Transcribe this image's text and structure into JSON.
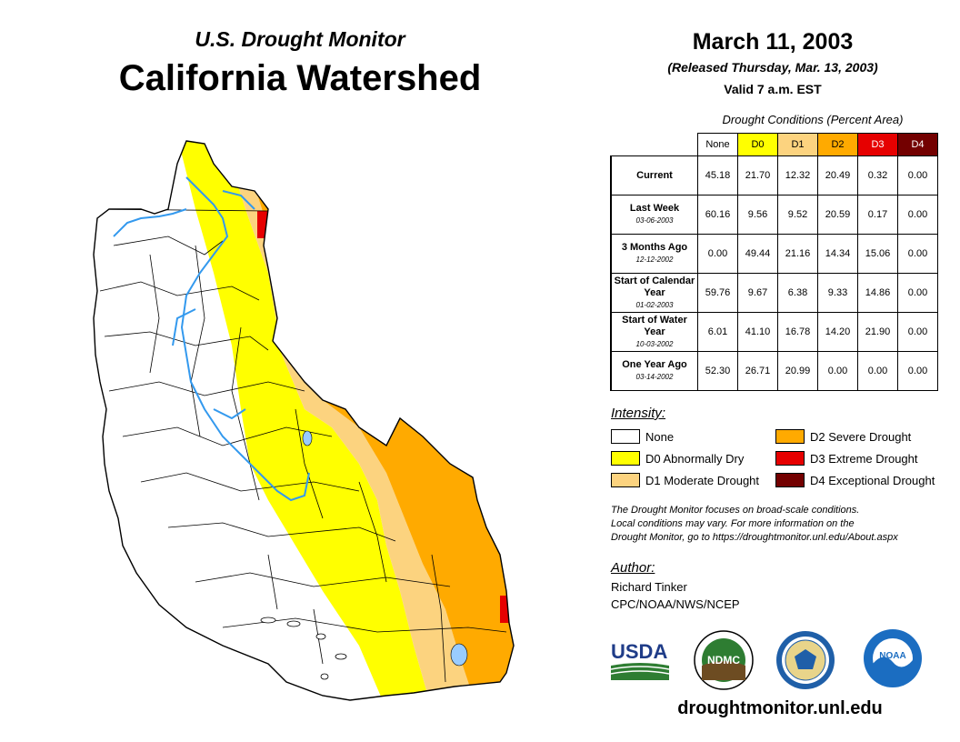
{
  "header": {
    "subtitle": "U.S. Drought Monitor",
    "title": "California Watershed",
    "date": "March 11, 2003",
    "released": "(Released Thursday, Mar. 13, 2003)",
    "valid": "Valid 7 a.m. EST"
  },
  "table": {
    "caption": "Drought Conditions (Percent Area)",
    "columns": [
      {
        "label": "None",
        "color": "#ffffff",
        "text_color": "#000000"
      },
      {
        "label": "D0",
        "color": "#ffff00",
        "text_color": "#000000"
      },
      {
        "label": "D1",
        "color": "#fcd37f",
        "text_color": "#000000"
      },
      {
        "label": "D2",
        "color": "#ffaa00",
        "text_color": "#000000"
      },
      {
        "label": "D3",
        "color": "#e60000",
        "text_color": "#ffffff"
      },
      {
        "label": "D4",
        "color": "#730000",
        "text_color": "#ffffff"
      }
    ],
    "rows": [
      {
        "label": "Current",
        "date": "",
        "values": [
          "45.18",
          "21.70",
          "12.32",
          "20.49",
          "0.32",
          "0.00"
        ]
      },
      {
        "label": "Last Week",
        "date": "03-06-2003",
        "values": [
          "60.16",
          "9.56",
          "9.52",
          "20.59",
          "0.17",
          "0.00"
        ]
      },
      {
        "label": "3 Months Ago",
        "date": "12-12-2002",
        "values": [
          "0.00",
          "49.44",
          "21.16",
          "14.34",
          "15.06",
          "0.00"
        ]
      },
      {
        "label": "Start of Calendar Year",
        "date": "01-02-2003",
        "values": [
          "59.76",
          "9.67",
          "6.38",
          "9.33",
          "14.86",
          "0.00"
        ]
      },
      {
        "label": "Start of Water Year",
        "date": "10-03-2002",
        "values": [
          "6.01",
          "41.10",
          "16.78",
          "14.20",
          "21.90",
          "0.00"
        ]
      },
      {
        "label": "One Year Ago",
        "date": "03-14-2002",
        "values": [
          "52.30",
          "26.71",
          "20.99",
          "0.00",
          "0.00",
          "0.00"
        ]
      }
    ]
  },
  "legend": {
    "title": "Intensity:",
    "items": [
      {
        "label": "None",
        "color": "#ffffff"
      },
      {
        "label": "D0 Abnormally Dry",
        "color": "#ffff00"
      },
      {
        "label": "D1 Moderate Drought",
        "color": "#fcd37f"
      },
      {
        "label": "D2 Severe Drought",
        "color": "#ffaa00"
      },
      {
        "label": "D3 Extreme Drought",
        "color": "#e60000"
      },
      {
        "label": "D4 Exceptional Drought",
        "color": "#730000"
      }
    ]
  },
  "note": {
    "line1": "The Drought Monitor focuses on broad-scale conditions.",
    "line2": "Local conditions may vary. For more information on the",
    "line3": "Drought Monitor, go to https://droughtmonitor.unl.edu/About.aspx"
  },
  "author": {
    "title": "Author:",
    "name": "Richard Tinker",
    "org": "CPC/NOAA/NWS/NCEP"
  },
  "logos": {
    "usda": "USDA",
    "ndmc": "NDMC",
    "noaa": "NOAA",
    "usda_icon": "usda-logo",
    "commerce_icon": "commerce-seal"
  },
  "footer": {
    "url": "droughtmonitor.unl.edu"
  },
  "colors": {
    "river": "#3399ee",
    "lake": "#99ccff",
    "border": "#000000"
  }
}
